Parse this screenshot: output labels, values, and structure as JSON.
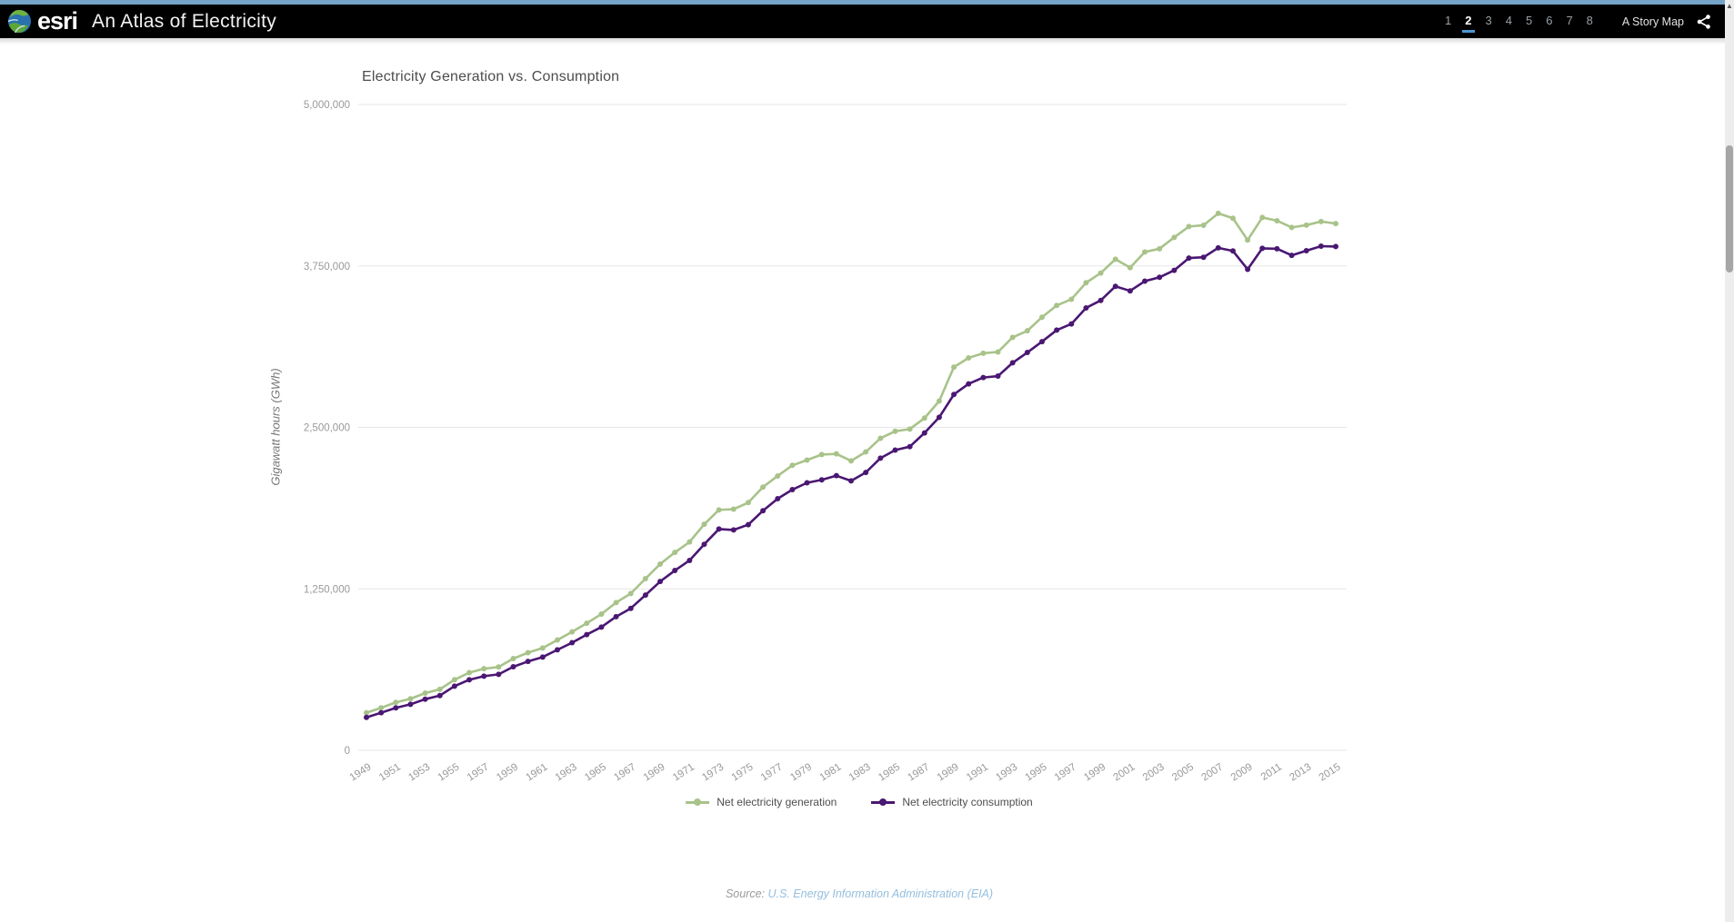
{
  "header": {
    "brand": "esri",
    "title": "An Atlas of Electricity",
    "pages": [
      "1",
      "2",
      "3",
      "4",
      "5",
      "6",
      "7",
      "8"
    ],
    "active_page": "2",
    "story_map_label": "A Story Map",
    "icons": {
      "logo": "esri-globe-icon",
      "share": "share-icon"
    },
    "colors": {
      "top_strip": "#74a5c8",
      "bar": "#000000",
      "active_underline": "#4e96d4"
    }
  },
  "chart_data": {
    "type": "line",
    "title": "Electricity Generation vs. Consumption",
    "ylabel": "Gigawatt hours (GWh)",
    "xlabel": "",
    "ylim": [
      0,
      5000000
    ],
    "yticks": [
      0,
      1250000,
      2500000,
      3750000,
      5000000
    ],
    "ytick_labels": [
      "0",
      "1,250,000",
      "2,500,000",
      "3,750,000",
      "5,000,000"
    ],
    "xtick_labels": [
      "1949",
      "1951",
      "1953",
      "1955",
      "1957",
      "1959",
      "1961",
      "1963",
      "1965",
      "1967",
      "1969",
      "1971",
      "1973",
      "1975",
      "1977",
      "1979",
      "1981",
      "1983",
      "1985",
      "1987",
      "1989",
      "1991",
      "1993",
      "1995",
      "1997",
      "1999",
      "2001",
      "2003",
      "2005",
      "2007",
      "2009",
      "2011",
      "2013",
      "2015"
    ],
    "x": [
      1949,
      1950,
      1951,
      1952,
      1953,
      1954,
      1955,
      1956,
      1957,
      1958,
      1959,
      1960,
      1961,
      1962,
      1963,
      1964,
      1965,
      1966,
      1967,
      1968,
      1969,
      1970,
      1971,
      1972,
      1973,
      1974,
      1975,
      1976,
      1977,
      1978,
      1979,
      1980,
      1981,
      1982,
      1983,
      1984,
      1985,
      1986,
      1987,
      1988,
      1989,
      1990,
      1991,
      1992,
      1993,
      1994,
      1995,
      1996,
      1997,
      1998,
      1999,
      2000,
      2001,
      2002,
      2003,
      2004,
      2005,
      2006,
      2007,
      2008,
      2009,
      2010,
      2011,
      2012,
      2013,
      2014,
      2015
    ],
    "series": [
      {
        "name": "Net electricity generation",
        "color": "#a8c38a",
        "values": [
          291000,
          329000,
          371000,
          399000,
          443000,
          472000,
          547000,
          601000,
          632000,
          645000,
          710000,
          756000,
          792000,
          854000,
          917000,
          984000,
          1055000,
          1144000,
          1214000,
          1329000,
          1442000,
          1532000,
          1613000,
          1750000,
          1861000,
          1867000,
          1918000,
          2038000,
          2124000,
          2206000,
          2247000,
          2290000,
          2295000,
          2241000,
          2310000,
          2416000,
          2470000,
          2487000,
          2572000,
          2704000,
          2967000,
          3038000,
          3074000,
          3084000,
          3197000,
          3248000,
          3353000,
          3444000,
          3492000,
          3620000,
          3695000,
          3802000,
          3737000,
          3858000,
          3883000,
          3971000,
          4055000,
          4065000,
          4157000,
          4119000,
          3950000,
          4125000,
          4100000,
          4048000,
          4066000,
          4094000,
          4078000
        ]
      },
      {
        "name": "Net electricity consumption",
        "color": "#4a1772",
        "values": [
          255000,
          291000,
          329000,
          356000,
          396000,
          424000,
          497000,
          546000,
          574000,
          588000,
          647000,
          688000,
          722000,
          778000,
          833000,
          896000,
          954000,
          1035000,
          1099000,
          1202000,
          1307000,
          1392000,
          1470000,
          1595000,
          1713000,
          1706000,
          1747000,
          1855000,
          1948000,
          2018000,
          2071000,
          2094000,
          2126000,
          2086000,
          2151000,
          2262000,
          2324000,
          2351000,
          2457000,
          2578000,
          2755000,
          2837000,
          2886000,
          2897000,
          3000000,
          3080000,
          3164000,
          3253000,
          3301000,
          3425000,
          3483000,
          3592000,
          3557000,
          3632000,
          3662000,
          3716000,
          3811000,
          3817000,
          3890000,
          3866000,
          3724000,
          3886000,
          3883000,
          3832000,
          3868000,
          3903000,
          3900000
        ]
      }
    ],
    "grid": true,
    "legend_position": "bottom",
    "grid_color": "#e6e6e6",
    "tick_color": "#999999"
  },
  "footer": {
    "source_prefix": "Source:",
    "source_link": "U.S. Energy Information Administration (EIA)"
  }
}
